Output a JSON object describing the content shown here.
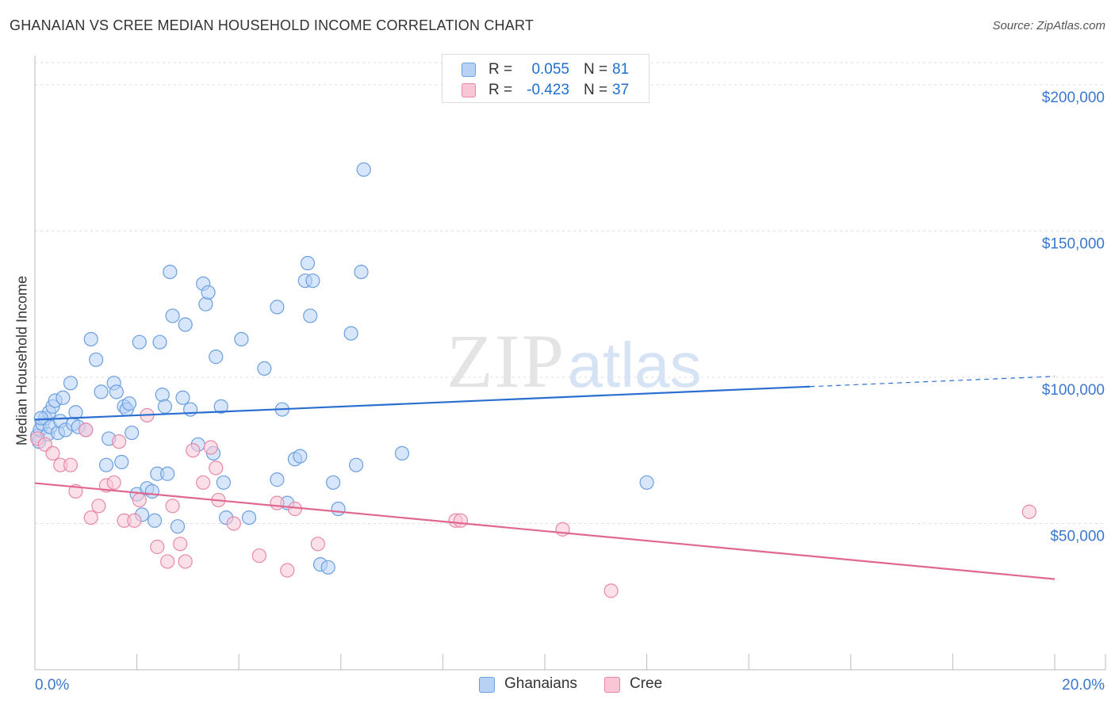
{
  "title": "GHANAIAN VS CREE MEDIAN HOUSEHOLD INCOME CORRELATION CHART",
  "source": "Source: ZipAtlas.com",
  "watermark": {
    "zip": "ZIP",
    "atlas": "atlas"
  },
  "legend_top": [
    {
      "r_label": "R =",
      "r_value": "0.055",
      "n_label": "N =",
      "n_value": "81",
      "fill": "#b7d2f5",
      "stroke": "#6b9fe0"
    },
    {
      "r_label": "R =",
      "r_value": "-0.423",
      "n_label": "N =",
      "n_value": "37",
      "fill": "#f9c6d6",
      "stroke": "#e888a8"
    }
  ],
  "chart_data": {
    "type": "scatter",
    "xlabel": "",
    "ylabel": "Median Household Income",
    "xlim": [
      0,
      20
    ],
    "ylim": [
      0,
      210000
    ],
    "x_tick_labels": [
      "0.0%",
      "20.0%"
    ],
    "y_ticks": [
      50000,
      100000,
      150000,
      200000
    ],
    "y_tick_labels": [
      "$50,000",
      "$100,000",
      "$150,000",
      "$200,000"
    ],
    "grid": true,
    "legend_position": "bottom-center",
    "series": [
      {
        "name": "Ghanaians",
        "color": "#6b9fe0",
        "fill": "#b7d2f5",
        "points": [
          [
            0.05,
            80000
          ],
          [
            0.08,
            78000
          ],
          [
            0.1,
            82000
          ],
          [
            0.15,
            84000
          ],
          [
            0.2,
            86000
          ],
          [
            0.25,
            80500
          ],
          [
            0.28,
            88000
          ],
          [
            0.3,
            83000
          ],
          [
            0.35,
            90000
          ],
          [
            0.4,
            92000
          ],
          [
            0.45,
            81000
          ],
          [
            0.5,
            85000
          ],
          [
            0.55,
            93000
          ],
          [
            0.6,
            82000
          ],
          [
            0.7,
            98000
          ],
          [
            0.75,
            84000
          ],
          [
            0.8,
            88000
          ],
          [
            0.85,
            83000
          ],
          [
            1.0,
            82000
          ],
          [
            1.1,
            113000
          ],
          [
            1.2,
            106000
          ],
          [
            1.3,
            95000
          ],
          [
            1.4,
            70000
          ],
          [
            1.45,
            79000
          ],
          [
            1.55,
            98000
          ],
          [
            1.6,
            95000
          ],
          [
            1.7,
            71000
          ],
          [
            1.75,
            90000
          ],
          [
            1.8,
            89000
          ],
          [
            1.85,
            91000
          ],
          [
            1.9,
            81000
          ],
          [
            2.0,
            60000
          ],
          [
            2.1,
            53000
          ],
          [
            2.05,
            112000
          ],
          [
            2.2,
            62000
          ],
          [
            2.3,
            61000
          ],
          [
            2.35,
            51000
          ],
          [
            2.4,
            67000
          ],
          [
            2.45,
            112000
          ],
          [
            2.5,
            94000
          ],
          [
            2.55,
            90000
          ],
          [
            2.6,
            67000
          ],
          [
            2.65,
            136000
          ],
          [
            2.7,
            121000
          ],
          [
            2.8,
            49000
          ],
          [
            2.9,
            93000
          ],
          [
            2.95,
            118000
          ],
          [
            3.05,
            89000
          ],
          [
            3.2,
            77000
          ],
          [
            3.3,
            132000
          ],
          [
            3.35,
            125000
          ],
          [
            3.4,
            129000
          ],
          [
            3.5,
            74000
          ],
          [
            3.55,
            107000
          ],
          [
            3.65,
            90000
          ],
          [
            3.7,
            64000
          ],
          [
            3.75,
            52000
          ],
          [
            4.05,
            113000
          ],
          [
            4.2,
            52000
          ],
          [
            4.5,
            103000
          ],
          [
            4.75,
            124000
          ],
          [
            4.75,
            65000
          ],
          [
            4.85,
            89000
          ],
          [
            4.95,
            57000
          ],
          [
            5.1,
            72000
          ],
          [
            5.2,
            73000
          ],
          [
            5.3,
            133000
          ],
          [
            5.35,
            139000
          ],
          [
            5.4,
            121000
          ],
          [
            5.45,
            133000
          ],
          [
            5.6,
            36000
          ],
          [
            5.75,
            35000
          ],
          [
            5.85,
            64000
          ],
          [
            5.95,
            55000
          ],
          [
            6.2,
            115000
          ],
          [
            6.3,
            70000
          ],
          [
            6.4,
            136000
          ],
          [
            6.45,
            171000
          ],
          [
            7.2,
            74000
          ],
          [
            12.0,
            64000
          ],
          [
            0.12,
            86000
          ]
        ]
      },
      {
        "name": "Cree",
        "color": "#e888a8",
        "fill": "#f9c6d6",
        "points": [
          [
            0.05,
            79000
          ],
          [
            0.2,
            77000
          ],
          [
            0.35,
            74000
          ],
          [
            0.5,
            70000
          ],
          [
            0.7,
            70000
          ],
          [
            0.8,
            61000
          ],
          [
            1.0,
            82000
          ],
          [
            1.1,
            52000
          ],
          [
            1.25,
            56000
          ],
          [
            1.4,
            63000
          ],
          [
            1.55,
            64000
          ],
          [
            1.65,
            78000
          ],
          [
            1.75,
            51000
          ],
          [
            1.95,
            51000
          ],
          [
            2.05,
            58000
          ],
          [
            2.2,
            87000
          ],
          [
            2.4,
            42000
          ],
          [
            2.6,
            37000
          ],
          [
            2.7,
            56000
          ],
          [
            2.85,
            43000
          ],
          [
            2.95,
            37000
          ],
          [
            3.1,
            75000
          ],
          [
            3.3,
            64000
          ],
          [
            3.45,
            76000
          ],
          [
            3.55,
            69000
          ],
          [
            3.6,
            58000
          ],
          [
            3.9,
            50000
          ],
          [
            4.4,
            39000
          ],
          [
            4.75,
            57000
          ],
          [
            4.95,
            34000
          ],
          [
            5.1,
            55000
          ],
          [
            5.55,
            43000
          ],
          [
            8.25,
            51000
          ],
          [
            8.35,
            51000
          ],
          [
            10.35,
            48000
          ],
          [
            11.3,
            27000
          ],
          [
            19.5,
            54000
          ]
        ]
      }
    ],
    "trend_lines": [
      {
        "series": "Ghanaians",
        "x": [
          0,
          15.2
        ],
        "y": [
          85500,
          96800
        ],
        "dashed_x": [
          15.2,
          20
        ],
        "dashed_y": [
          96800,
          100300
        ]
      },
      {
        "series": "Cree",
        "x": [
          0,
          20
        ],
        "y": [
          63800,
          31000
        ]
      }
    ]
  },
  "legend_bottom": [
    {
      "label": "Ghanaians",
      "fill": "#b7d2f5",
      "stroke": "#6b9fe0"
    },
    {
      "label": "Cree",
      "fill": "#f9c6d6",
      "stroke": "#e888a8"
    }
  ],
  "colors": {
    "axis_label": "#3a78d0",
    "grid": "#dddddd",
    "blue_line": "#2a6fd0",
    "pink_line": "#e06890"
  }
}
